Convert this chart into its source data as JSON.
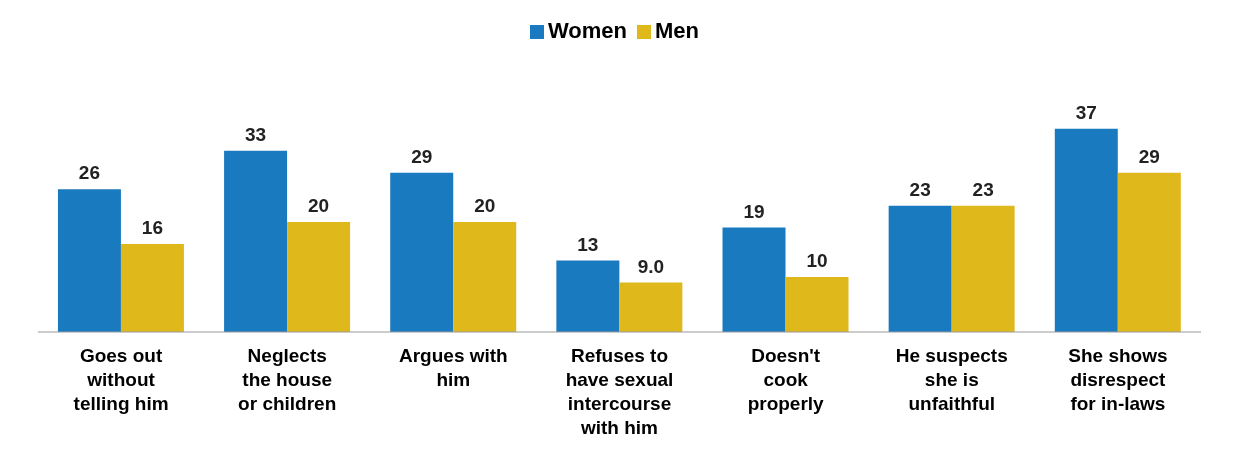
{
  "chart_data": {
    "type": "bar",
    "categories": [
      "Goes out without telling him",
      "Neglects the house or children",
      "Argues with him",
      "Refuses to have sexual intercourse with him",
      "Doesn't cook properly",
      "He suspects she is unfaithful",
      "She shows disrespect for in-laws"
    ],
    "series": [
      {
        "name": "Women",
        "color": "#1a7abf",
        "values": [
          26,
          33,
          29,
          13,
          19,
          23,
          37
        ],
        "value_labels": [
          "26",
          "33",
          "29",
          "13",
          "19",
          "23",
          "37"
        ]
      },
      {
        "name": "Men",
        "color": "#dfb81c",
        "values": [
          16,
          20,
          20,
          9,
          10,
          23,
          29
        ],
        "value_labels": [
          "16",
          "20",
          "20",
          "9.0",
          "10",
          "23",
          "29"
        ]
      }
    ],
    "legend": "top",
    "grid": false
  }
}
